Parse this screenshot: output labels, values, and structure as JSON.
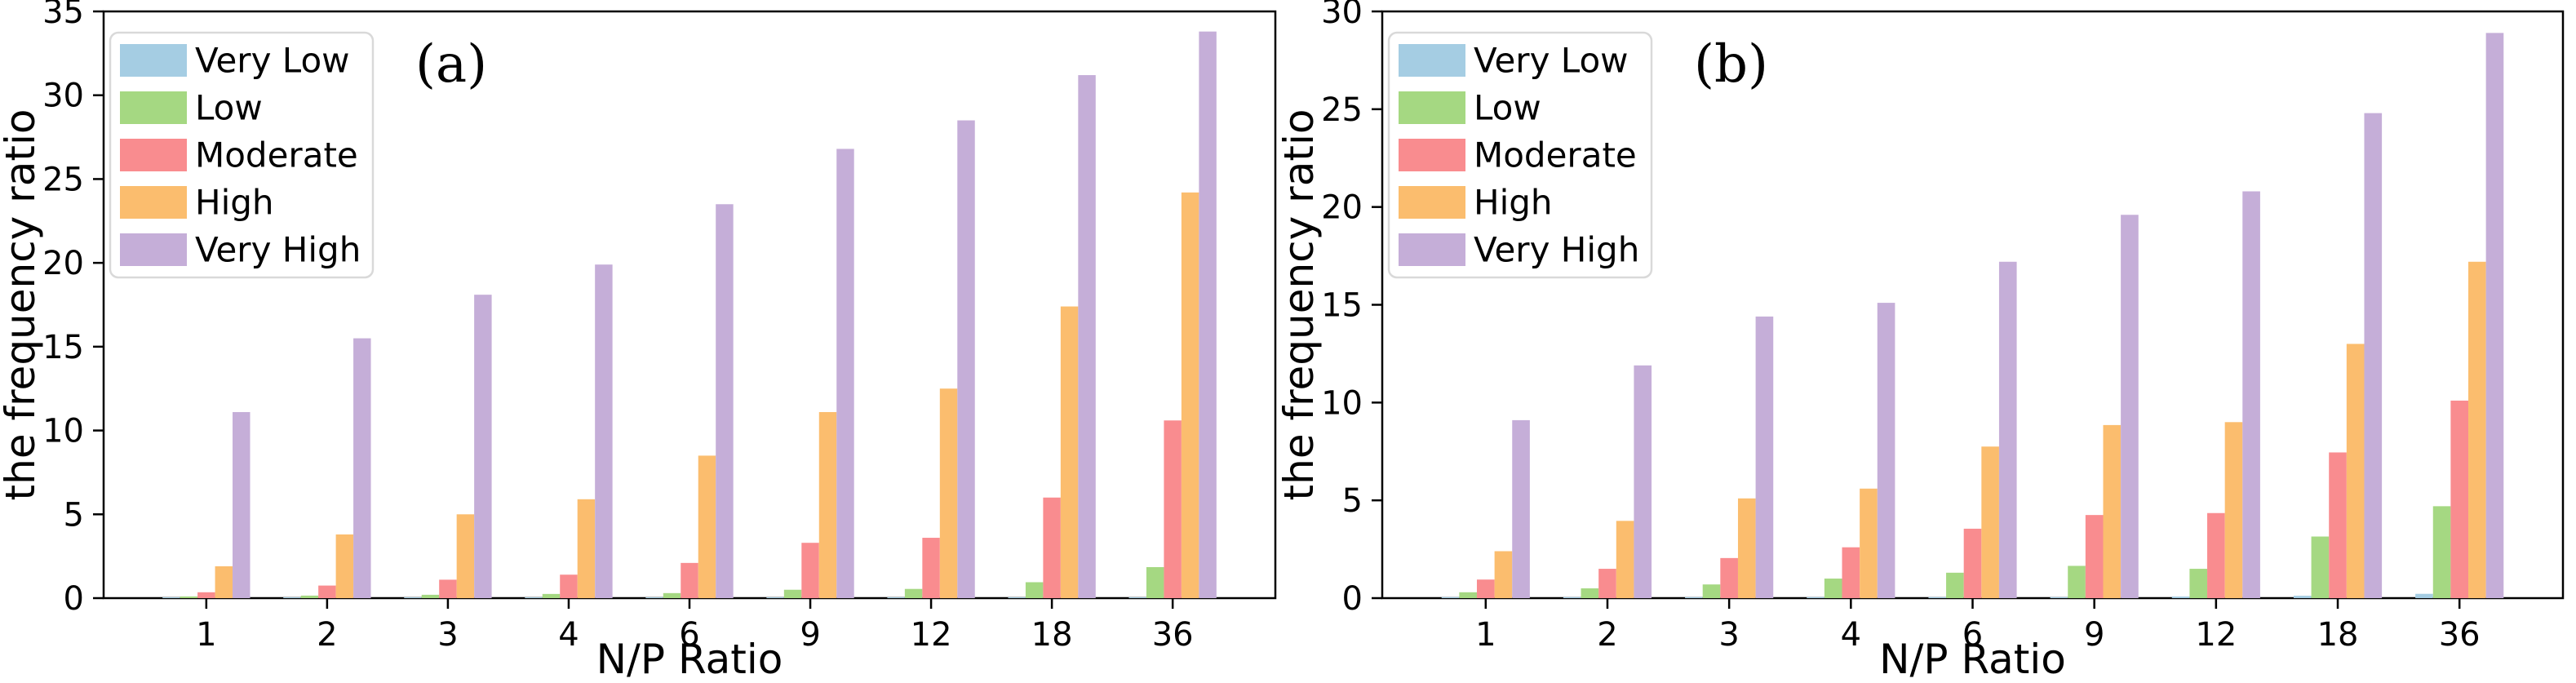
{
  "figure": {
    "background": "#ffffff",
    "axis_color": "#000000",
    "legend_border_color": "#d9d9d9",
    "legend_background": "#ffffff"
  },
  "legend": {
    "labels": [
      "Very Low",
      "Low",
      "Moderate",
      "High",
      "Very High"
    ]
  },
  "palette": {
    "very_low": "#a5cde3",
    "low": "#a5d882",
    "moderate": "#f98c8f",
    "high": "#fbbd6e",
    "very_high": "#c5aed8"
  },
  "chart_data": [
    {
      "type": "bar",
      "panel_label": "(a)",
      "xlabel": "N/P Ratio",
      "ylabel": "the frequency ratio",
      "categories": [
        "1",
        "2",
        "3",
        "4",
        "6",
        "9",
        "12",
        "18",
        "36"
      ],
      "ylim": [
        0,
        35
      ],
      "yticks": [
        0,
        5,
        10,
        15,
        20,
        25,
        30,
        35
      ],
      "grid": false,
      "legend_position": "upper left",
      "series": [
        {
          "name": "Very Low",
          "color": "#a5cde3",
          "values": [
            0.05,
            0.05,
            0.05,
            0.05,
            0.05,
            0.05,
            0.05,
            0.05,
            0.05
          ]
        },
        {
          "name": "Low",
          "color": "#a5d882",
          "values": [
            0.1,
            0.15,
            0.2,
            0.25,
            0.3,
            0.5,
            0.55,
            0.95,
            1.85
          ]
        },
        {
          "name": "Moderate",
          "color": "#f98c8f",
          "values": [
            0.35,
            0.75,
            1.1,
            1.4,
            2.1,
            3.3,
            3.6,
            6.0,
            10.6
          ]
        },
        {
          "name": "High",
          "color": "#fbbd6e",
          "values": [
            1.9,
            3.8,
            5.0,
            5.9,
            8.5,
            11.1,
            12.5,
            17.4,
            24.2
          ]
        },
        {
          "name": "Very High",
          "color": "#c5aed8",
          "values": [
            11.1,
            15.5,
            18.1,
            19.9,
            23.5,
            26.8,
            28.5,
            31.2,
            33.8
          ]
        }
      ]
    },
    {
      "type": "bar",
      "panel_label": "(b)",
      "xlabel": "N/P Ratio",
      "ylabel": "the frequency ratio",
      "categories": [
        "1",
        "2",
        "3",
        "4",
        "6",
        "9",
        "12",
        "18",
        "36"
      ],
      "ylim": [
        0,
        30
      ],
      "yticks": [
        0,
        5,
        10,
        15,
        20,
        25,
        30
      ],
      "grid": false,
      "legend_position": "upper left",
      "series": [
        {
          "name": "Very Low",
          "color": "#a5cde3",
          "values": [
            0.05,
            0.05,
            0.05,
            0.05,
            0.05,
            0.05,
            0.08,
            0.12,
            0.22
          ]
        },
        {
          "name": "Low",
          "color": "#a5d882",
          "values": [
            0.3,
            0.5,
            0.7,
            1.0,
            1.3,
            1.65,
            1.5,
            3.15,
            4.7
          ]
        },
        {
          "name": "Moderate",
          "color": "#f98c8f",
          "values": [
            0.95,
            1.5,
            2.05,
            2.6,
            3.55,
            4.25,
            4.35,
            7.45,
            10.1
          ]
        },
        {
          "name": "High",
          "color": "#fbbd6e",
          "values": [
            2.4,
            3.95,
            5.1,
            5.6,
            7.75,
            8.85,
            9.0,
            13.0,
            17.2
          ]
        },
        {
          "name": "Very High",
          "color": "#c5aed8",
          "values": [
            9.1,
            11.9,
            14.4,
            15.1,
            17.2,
            19.6,
            20.8,
            24.8,
            28.9
          ]
        }
      ]
    }
  ]
}
